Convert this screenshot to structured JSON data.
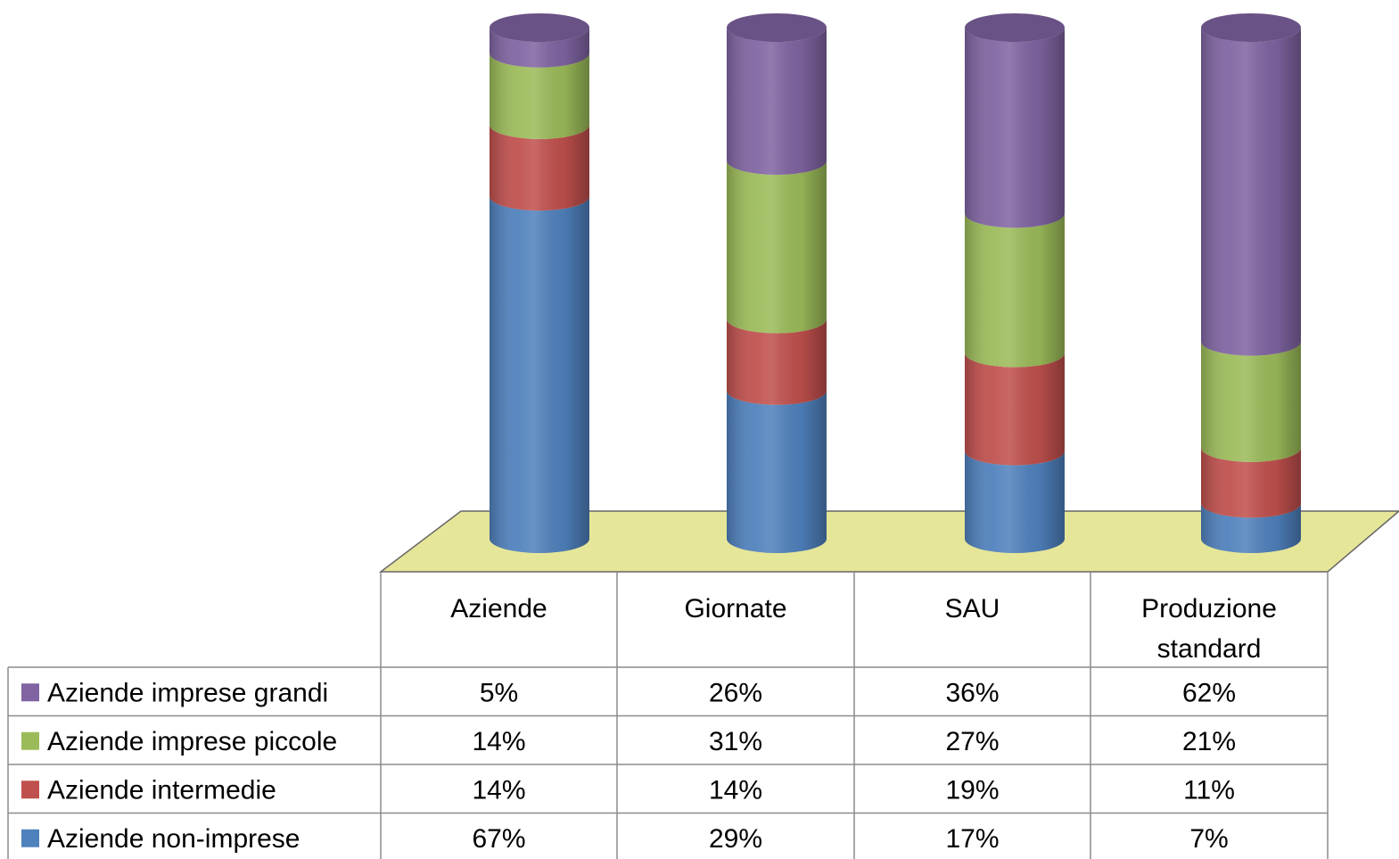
{
  "chart_data": {
    "type": "bar",
    "stacked": true,
    "style": "3d-cylinder-stacked-100-with-data-table",
    "categories": [
      "Aziende",
      "Giornate",
      "SAU",
      "Produzione standard"
    ],
    "category_lines": [
      [
        "Aziende"
      ],
      [
        "Giornate"
      ],
      [
        "SAU"
      ],
      [
        "Produzione",
        "standard"
      ]
    ],
    "series": [
      {
        "name": "Aziende non-imprese",
        "color": "#4F81BD",
        "values": [
          67,
          29,
          17,
          7
        ],
        "labels": [
          "67%",
          "29%",
          "17%",
          "7%"
        ]
      },
      {
        "name": "Aziende intermedie",
        "color": "#C0504D",
        "values": [
          14,
          14,
          19,
          11
        ],
        "labels": [
          "14%",
          "14%",
          "19%",
          "11%"
        ]
      },
      {
        "name": "Aziende imprese piccole",
        "color": "#9BBB59",
        "values": [
          14,
          31,
          27,
          21
        ],
        "labels": [
          "14%",
          "31%",
          "27%",
          "21%"
        ]
      },
      {
        "name": "Aziende imprese grandi",
        "color": "#8064A2",
        "values": [
          5,
          26,
          36,
          62
        ],
        "labels": [
          "5%",
          "26%",
          "36%",
          "62%"
        ]
      }
    ],
    "table_row_order": [
      3,
      2,
      1,
      0
    ],
    "ylim": [
      0,
      100
    ],
    "floor_color": "#E6E699",
    "legend_position": "in-data-table",
    "grid": false
  }
}
